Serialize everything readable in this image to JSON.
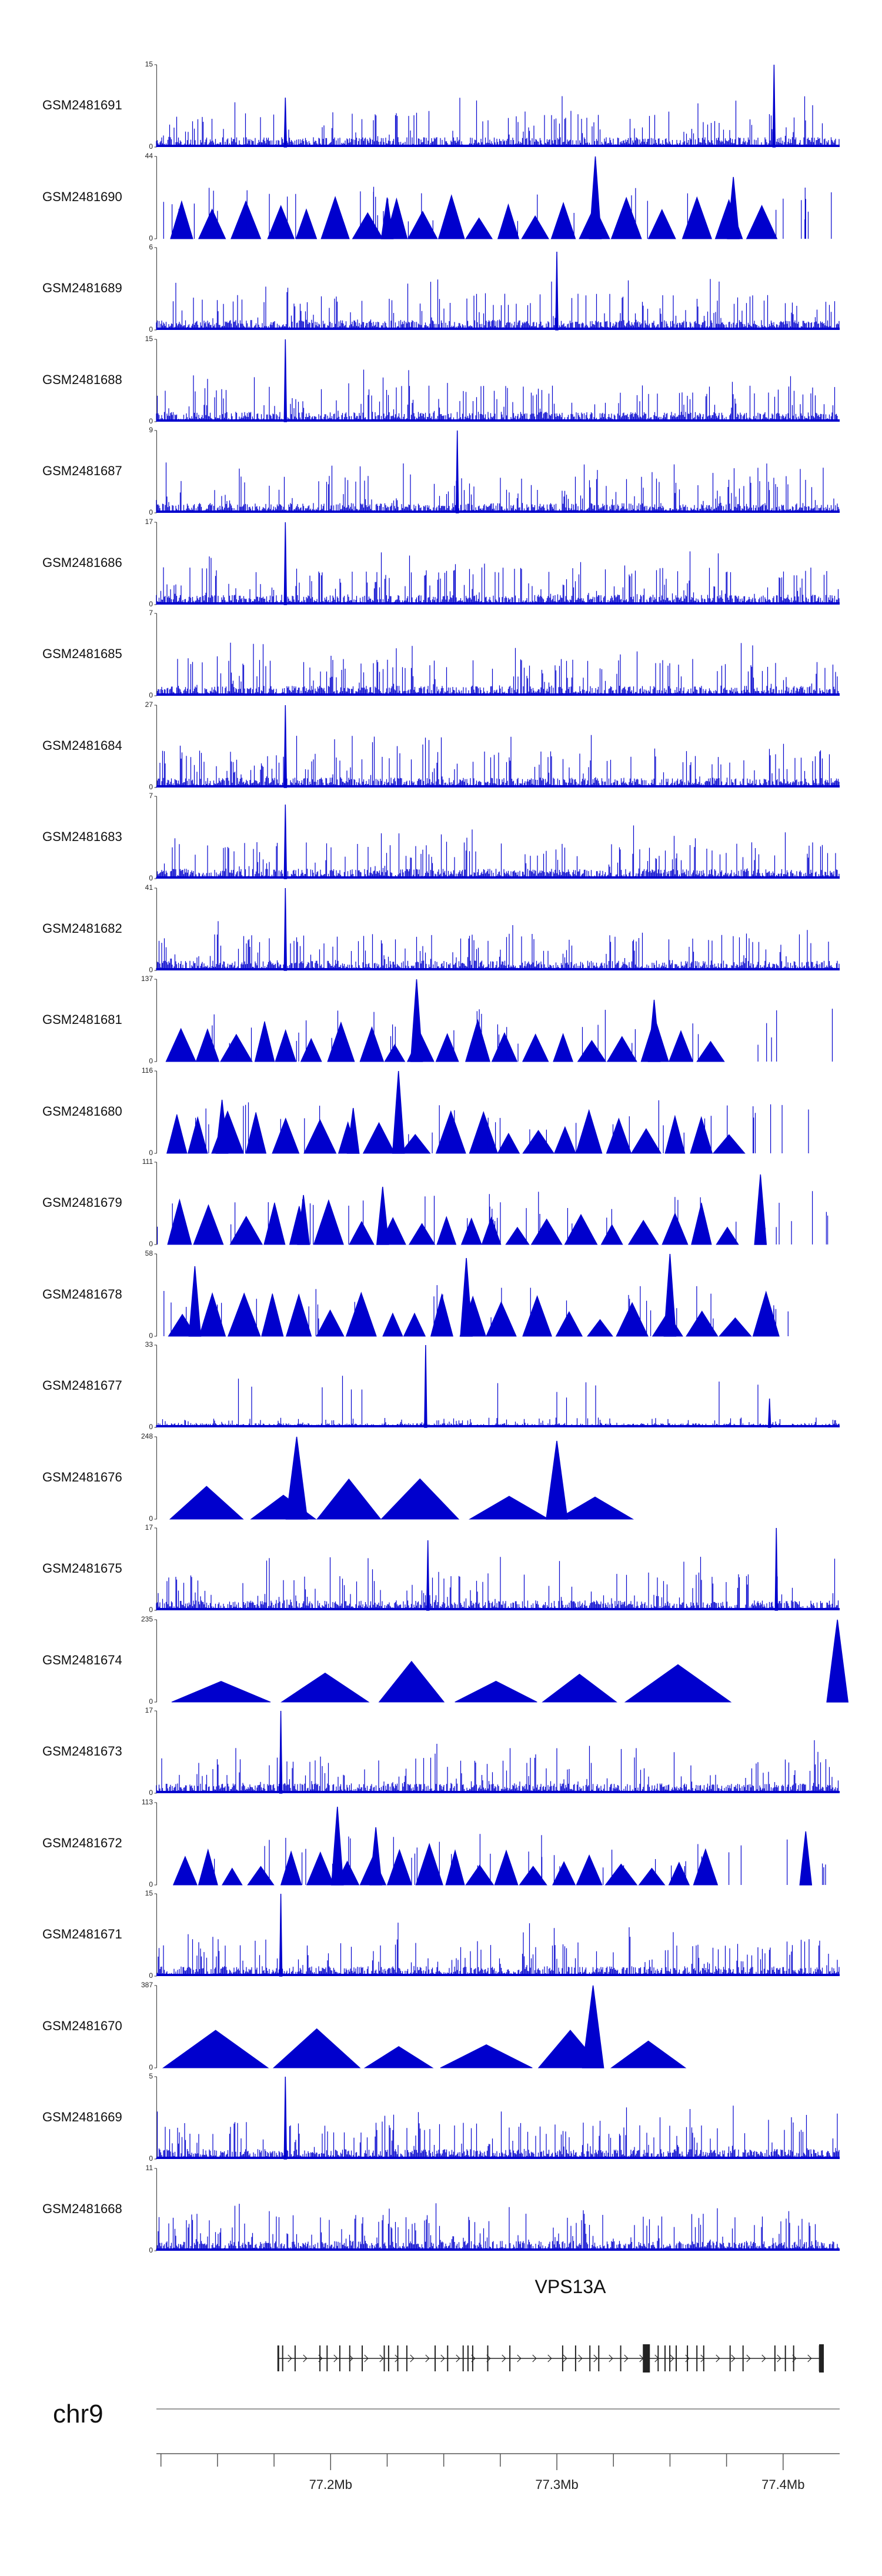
{
  "chromosome": "chr9",
  "gene": {
    "name": "VPS13A",
    "strand": "+",
    "start_mb": 77.177,
    "end_mb": 77.418
  },
  "axis": {
    "range_mb": [
      77.123,
      77.425
    ],
    "ticks": [
      "77.2Mb",
      "77.3Mb",
      "77.4Mb"
    ],
    "tick_values_mb": [
      77.2,
      77.3,
      77.4
    ]
  },
  "colors": {
    "signal": "#0000cd",
    "axis": "#555555",
    "gene": "#222222"
  },
  "chart_data": {
    "type": "area",
    "x_range_mb": [
      77.123,
      77.425
    ],
    "tracks": [
      {
        "name": "GSM2481691",
        "ymax": "15",
        "ymin": "0",
        "style": "dense",
        "peaks": [
          [
            77.18,
            0.6
          ],
          [
            77.396,
            1.0
          ]
        ]
      },
      {
        "name": "GSM2481690",
        "ymax": "44",
        "ymin": "0",
        "style": "triangles",
        "peaks": [
          [
            77.225,
            0.5
          ],
          [
            77.317,
            1.0
          ],
          [
            77.378,
            0.75
          ]
        ]
      },
      {
        "name": "GSM2481689",
        "ymax": "6",
        "ymin": "0",
        "style": "dense",
        "peaks": [
          [
            77.3,
            0.95
          ]
        ]
      },
      {
        "name": "GSM2481688",
        "ymax": "15",
        "ymin": "0",
        "style": "dense",
        "peaks": [
          [
            77.18,
            1.0
          ]
        ]
      },
      {
        "name": "GSM2481687",
        "ymax": "9",
        "ymin": "0",
        "style": "dense",
        "peaks": [
          [
            77.256,
            1.0
          ]
        ]
      },
      {
        "name": "GSM2481686",
        "ymax": "17",
        "ymin": "0",
        "style": "dense",
        "peaks": [
          [
            77.18,
            1.0
          ]
        ]
      },
      {
        "name": "GSM2481685",
        "ymax": "7",
        "ymin": "0",
        "style": "dense",
        "peaks": []
      },
      {
        "name": "GSM2481684",
        "ymax": "27",
        "ymin": "0",
        "style": "dense",
        "peaks": [
          [
            77.18,
            1.0
          ]
        ]
      },
      {
        "name": "GSM2481683",
        "ymax": "7",
        "ymin": "0",
        "style": "dense",
        "peaks": [
          [
            77.18,
            0.9
          ]
        ]
      },
      {
        "name": "GSM2481682",
        "ymax": "41",
        "ymin": "0",
        "style": "dense",
        "peaks": [
          [
            77.18,
            1.0
          ]
        ]
      },
      {
        "name": "GSM2481681",
        "ymax": "137",
        "ymin": "0",
        "style": "triangles",
        "peaks": [
          [
            77.238,
            1.0
          ],
          [
            77.343,
            0.75
          ]
        ]
      },
      {
        "name": "GSM2481680",
        "ymax": "116",
        "ymin": "0",
        "style": "triangles",
        "peaks": [
          [
            77.23,
            1.0
          ],
          [
            77.152,
            0.65
          ],
          [
            77.21,
            0.55
          ]
        ]
      },
      {
        "name": "GSM2481679",
        "ymax": "111",
        "ymin": "0",
        "style": "triangles",
        "peaks": [
          [
            77.223,
            0.7
          ],
          [
            77.188,
            0.6
          ],
          [
            77.39,
            0.85
          ]
        ]
      },
      {
        "name": "GSM2481678",
        "ymax": "58",
        "ymin": "0",
        "style": "triangles",
        "peaks": [
          [
            77.26,
            0.95
          ],
          [
            77.35,
            1.0
          ],
          [
            77.14,
            0.85
          ]
        ]
      },
      {
        "name": "GSM2481677",
        "ymax": "33",
        "ymin": "0",
        "style": "dense-low",
        "peaks": [
          [
            77.242,
            1.0
          ],
          [
            77.394,
            0.35
          ]
        ]
      },
      {
        "name": "GSM2481676",
        "ymax": "248",
        "ymin": "0",
        "style": "broad",
        "peaks": [
          [
            77.185,
            1.0
          ],
          [
            77.3,
            0.95
          ]
        ]
      },
      {
        "name": "GSM2481675",
        "ymax": "17",
        "ymin": "0",
        "style": "dense",
        "peaks": [
          [
            77.397,
            1.0
          ],
          [
            77.243,
            0.85
          ]
        ]
      },
      {
        "name": "GSM2481674",
        "ymax": "235",
        "ymin": "0",
        "style": "broad",
        "peaks": [
          [
            77.424,
            1.0
          ]
        ]
      },
      {
        "name": "GSM2481673",
        "ymax": "17",
        "ymin": "0",
        "style": "dense",
        "peaks": [
          [
            77.178,
            1.0
          ]
        ]
      },
      {
        "name": "GSM2481672",
        "ymax": "113",
        "ymin": "0",
        "style": "triangles",
        "peaks": [
          [
            77.203,
            0.95
          ],
          [
            77.22,
            0.7
          ],
          [
            77.41,
            0.65
          ]
        ]
      },
      {
        "name": "GSM2481671",
        "ymax": "15",
        "ymin": "0",
        "style": "dense",
        "peaks": [
          [
            77.178,
            1.0
          ]
        ]
      },
      {
        "name": "GSM2481670",
        "ymax": "387",
        "ymin": "0",
        "style": "broad",
        "peaks": [
          [
            77.316,
            1.0
          ]
        ]
      },
      {
        "name": "GSM2481669",
        "ymax": "5",
        "ymin": "0",
        "style": "dense",
        "peaks": [
          [
            77.18,
            1.0
          ]
        ]
      },
      {
        "name": "GSM2481668",
        "ymax": "11",
        "ymin": "0",
        "style": "dense",
        "peaks": []
      }
    ]
  }
}
